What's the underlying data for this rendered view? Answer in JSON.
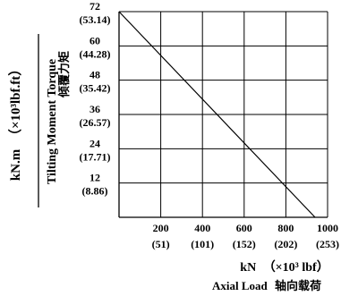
{
  "chart_data": {
    "type": "line",
    "xlim": [
      0,
      1000
    ],
    "ylim": [
      0,
      72
    ],
    "x_ticks": [
      {
        "value": 200,
        "label": "200",
        "sublabel": "(51)"
      },
      {
        "value": 400,
        "label": "400",
        "sublabel": "(101)"
      },
      {
        "value": 600,
        "label": "600",
        "sublabel": "(152)"
      },
      {
        "value": 800,
        "label": "800",
        "sublabel": "(202)"
      },
      {
        "value": 1000,
        "label": "1000",
        "sublabel": "(253)"
      }
    ],
    "y_ticks": [
      {
        "value": 72,
        "label": "72",
        "sublabel": "(53.14)"
      },
      {
        "value": 60,
        "label": "60",
        "sublabel": "(44.28)"
      },
      {
        "value": 48,
        "label": "48",
        "sublabel": "(35.42)"
      },
      {
        "value": 36,
        "label": "36",
        "sublabel": "(26.57)"
      },
      {
        "value": 24,
        "label": "24",
        "sublabel": "(17.71)"
      },
      {
        "value": 12,
        "label": "12",
        "sublabel": "(8.86)"
      }
    ],
    "grid": true,
    "series": [
      {
        "x": [
          0,
          940
        ],
        "y": [
          72,
          0
        ],
        "color": "#000000"
      }
    ],
    "y_label": {
      "unit_main": "kN.m",
      "unit_alt": "（×10³lbf.ft）",
      "english": "Tilting Moment Torque",
      "chinese": "倾覆力矩"
    },
    "x_label": {
      "unit_main": "kN",
      "unit_alt": "（×10³ lbf）",
      "english": "Axial Load",
      "chinese": "轴向载荷"
    }
  }
}
